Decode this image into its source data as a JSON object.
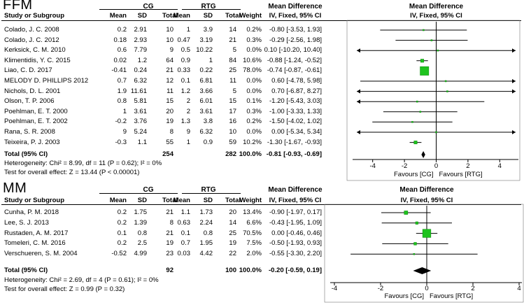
{
  "chart_data": [
    {
      "type": "table",
      "panel_title": "FFM",
      "headers": {
        "group1": "CG",
        "group2": "RTG",
        "study": "Study or Subgroup",
        "mean": "Mean",
        "sd": "SD",
        "total": "Total",
        "weight": "Weight",
        "md_title": "Mean Difference",
        "md_sub": "IV, Fixed, 95% CI",
        "plot_title": "Mean Difference",
        "plot_sub": "IV, Fixed, 95% CI"
      },
      "studies": [
        {
          "name": "Colado, J. C. 2008",
          "m1": "0.2",
          "sd1": "2.91",
          "n1": "10",
          "m2": "1",
          "sd2": "3.9",
          "n2": "14",
          "weight": "0.2%",
          "ci_text": "-0.80 [-3.53, 1.93]",
          "md": -0.8,
          "lo": -3.53,
          "hi": 1.93
        },
        {
          "name": "Colado, J. C. 2012",
          "m1": "0.18",
          "sd1": "2.93",
          "n1": "10",
          "m2": "0.47",
          "sd2": "3.19",
          "n2": "21",
          "weight": "0.3%",
          "ci_text": "-0.29 [-2.56, 1.98]",
          "md": -0.29,
          "lo": -2.56,
          "hi": 1.98
        },
        {
          "name": "Kerksick, C. M. 2010",
          "m1": "0.6",
          "sd1": "7.79",
          "n1": "9",
          "m2": "0.5",
          "sd2": "10.22",
          "n2": "5",
          "weight": "0.0%",
          "ci_text": "0.10 [-10.20, 10.40]",
          "md": 0.1,
          "lo": -10.2,
          "hi": 10.4
        },
        {
          "name": "Klimentidis, Y. C. 2015",
          "m1": "0.02",
          "sd1": "1.2",
          "n1": "64",
          "m2": "0.9",
          "sd2": "1",
          "n2": "84",
          "weight": "10.6%",
          "ci_text": "-0.88 [-1.24, -0.52]",
          "md": -0.88,
          "lo": -1.24,
          "hi": -0.52
        },
        {
          "name": "Liao, C. D. 2017",
          "m1": "-0.41",
          "sd1": "0.24",
          "n1": "21",
          "m2": "0.33",
          "sd2": "0.22",
          "n2": "25",
          "weight": "78.0%",
          "ci_text": "-0.74 [-0.87, -0.61]",
          "md": -0.74,
          "lo": -0.87,
          "hi": -0.61
        },
        {
          "name": "MELODY D. PHILLIPS 2012",
          "m1": "0.7",
          "sd1": "6.32",
          "n1": "12",
          "m2": "0.1",
          "sd2": "6.81",
          "n2": "11",
          "weight": "0.0%",
          "ci_text": "0.60 [-4.78, 5.98]",
          "md": 0.6,
          "lo": -4.78,
          "hi": 5.98
        },
        {
          "name": "Nichols, D. L. 2001",
          "m1": "1.9",
          "sd1": "11.61",
          "n1": "11",
          "m2": "1.2",
          "sd2": "3.66",
          "n2": "5",
          "weight": "0.0%",
          "ci_text": "0.70 [-6.87, 8.27]",
          "md": 0.7,
          "lo": -6.87,
          "hi": 8.27
        },
        {
          "name": "Olson, T. P. 2006",
          "m1": "0.8",
          "sd1": "5.81",
          "n1": "15",
          "m2": "2",
          "sd2": "6.01",
          "n2": "15",
          "weight": "0.1%",
          "ci_text": "-1.20 [-5.43, 3.03]",
          "md": -1.2,
          "lo": -5.43,
          "hi": 3.03
        },
        {
          "name": "Poehlman, E. T. 2000",
          "m1": "1",
          "sd1": "3.61",
          "n1": "20",
          "m2": "2",
          "sd2": "3.61",
          "n2": "17",
          "weight": "0.3%",
          "ci_text": "-1.00 [-3.33, 1.33]",
          "md": -1.0,
          "lo": -3.33,
          "hi": 1.33
        },
        {
          "name": "Poehlman, E. T. 2002",
          "m1": "-0.2",
          "sd1": "3.76",
          "n1": "19",
          "m2": "1.3",
          "sd2": "3.8",
          "n2": "16",
          "weight": "0.2%",
          "ci_text": "-1.50 [-4.02, 1.02]",
          "md": -1.5,
          "lo": -4.02,
          "hi": 1.02
        },
        {
          "name": "Rana, S. R. 2008",
          "m1": "9",
          "sd1": "5.24",
          "n1": "8",
          "m2": "9",
          "sd2": "6.32",
          "n2": "10",
          "weight": "0.0%",
          "ci_text": "0.00 [-5.34, 5.34]",
          "md": 0.0,
          "lo": -5.34,
          "hi": 5.34
        },
        {
          "name": "Teixeira, P. J. 2003",
          "m1": "-0.3",
          "sd1": "1.1",
          "n1": "55",
          "m2": "1",
          "sd2": "0.9",
          "n2": "59",
          "weight": "10.2%",
          "ci_text": "-1.30 [-1.67, -0.93]",
          "md": -1.3,
          "lo": -1.67,
          "hi": -0.93
        }
      ],
      "total": {
        "label": "Total (95% CI)",
        "n1": "254",
        "n2": "282",
        "weight": "100.0%",
        "ci_text": "-0.81 [-0.93, -0.69]",
        "md": -0.81,
        "lo": -0.93,
        "hi": -0.69
      },
      "heterogeneity": "Heterogeneity: Chi² = 8.99, df = 11 (P = 0.62); I² = 0%",
      "overall_effect": "Test for overall effect: Z = 13.44 (P < 0.00001)",
      "axis": {
        "min": -5,
        "max": 5,
        "ticks": [
          -4,
          -2,
          0,
          2,
          4
        ],
        "tick_labels": [
          "-4",
          "-2",
          "0",
          "2",
          "4"
        ]
      },
      "favours_left": "Favours [CG]",
      "favours_right": "Favours [RTG]"
    },
    {
      "type": "table",
      "panel_title": "MM",
      "headers": {
        "group1": "CG",
        "group2": "RTG",
        "study": "Study or Subgroup",
        "mean": "Mean",
        "sd": "SD",
        "total": "Total",
        "weight": "Weight",
        "md_title": "Mean Difference",
        "md_sub": "IV, Fixed, 95% CI",
        "plot_title": "Mean Difference",
        "plot_sub": "IV, Fixed, 95% CI"
      },
      "studies": [
        {
          "name": "Cunha, P. M. 2018",
          "m1": "0.2",
          "sd1": "1.75",
          "n1": "21",
          "m2": "1.1",
          "sd2": "1.73",
          "n2": "20",
          "weight": "13.4%",
          "ci_text": "-0.90 [-1.97, 0.17]",
          "md": -0.9,
          "lo": -1.97,
          "hi": 0.17
        },
        {
          "name": "Lee, S. J. 2013",
          "m1": "0.2",
          "sd1": "1.39",
          "n1": "8",
          "m2": "0.63",
          "sd2": "2.24",
          "n2": "14",
          "weight": "6.6%",
          "ci_text": "-0.43 [-1.95, 1.09]",
          "md": -0.43,
          "lo": -1.95,
          "hi": 1.09
        },
        {
          "name": "Rustaden, A. M. 2017",
          "m1": "0.1",
          "sd1": "0.8",
          "n1": "21",
          "m2": "0.1",
          "sd2": "0.8",
          "n2": "25",
          "weight": "70.5%",
          "ci_text": "0.00 [-0.46, 0.46]",
          "md": 0.0,
          "lo": -0.46,
          "hi": 0.46
        },
        {
          "name": "Tomeleri, C. M. 2016",
          "m1": "0.2",
          "sd1": "2.5",
          "n1": "19",
          "m2": "0.7",
          "sd2": "1.95",
          "n2": "19",
          "weight": "7.5%",
          "ci_text": "-0.50 [-1.93, 0.93]",
          "md": -0.5,
          "lo": -1.93,
          "hi": 0.93
        },
        {
          "name": "Verschueren, S. M. 2004",
          "m1": "-0.52",
          "sd1": "4.99",
          "n1": "23",
          "m2": "0.03",
          "sd2": "4.42",
          "n2": "22",
          "weight": "2.0%",
          "ci_text": "-0.55 [-3.30, 2.20]",
          "md": -0.55,
          "lo": -3.3,
          "hi": 2.2
        }
      ],
      "total": {
        "label": "Total (95% CI)",
        "n1": "92",
        "n2": "100",
        "weight": "100.0%",
        "ci_text": "-0.20 [-0.59, 0.19]",
        "md": -0.2,
        "lo": -0.59,
        "hi": 0.19
      },
      "heterogeneity": "Heterogeneity: Chi² = 2.69, df = 4 (P = 0.61); I² = 0%",
      "overall_effect": "Test for overall effect: Z = 0.99 (P = 0.32)",
      "axis": {
        "min": -4,
        "max": 4,
        "ticks": [
          -4,
          -2,
          0,
          2,
          4
        ],
        "tick_labels": [
          "-4",
          "-2",
          "0",
          "2",
          "4"
        ]
      },
      "favours_left": "Favours [CG]",
      "favours_right": "Favours [RTG]"
    }
  ],
  "colors": {
    "square": "#1ec31e",
    "square_border": "#0a8a0a",
    "line": "#000000"
  }
}
